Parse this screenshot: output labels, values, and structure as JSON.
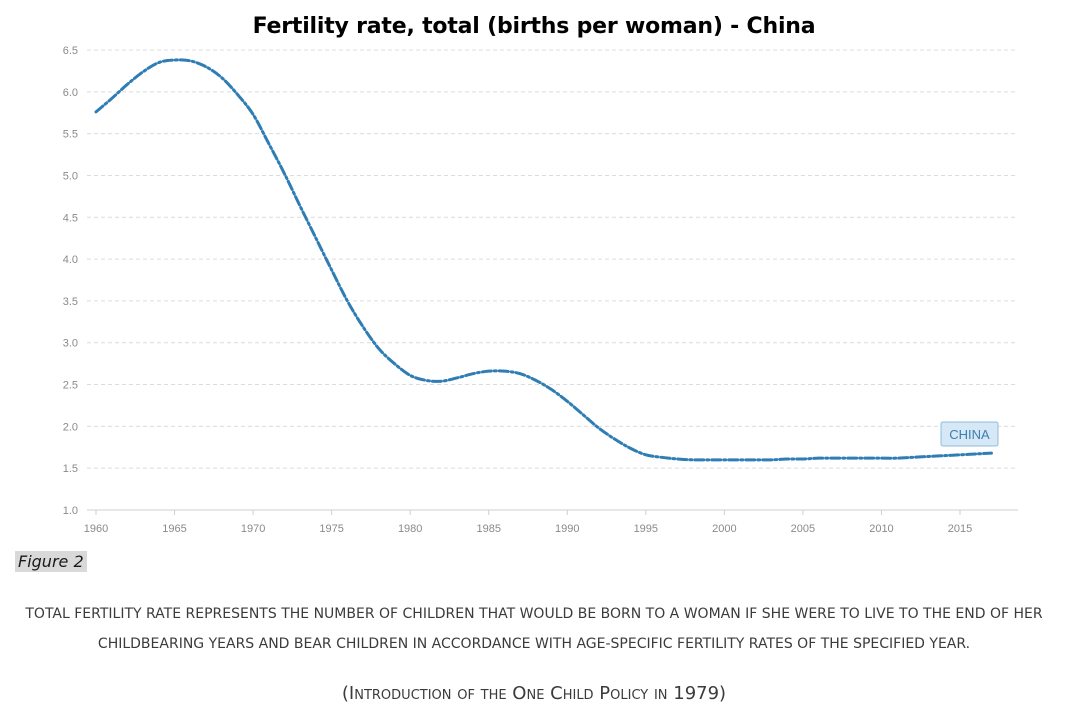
{
  "chart_data": {
    "type": "line",
    "title": "Fertility rate, total (births per woman) - China",
    "xlabel": "",
    "ylabel": "",
    "xlim": [
      1960,
      2018
    ],
    "ylim": [
      1.0,
      6.5
    ],
    "x_ticks": [
      "1960",
      "1965",
      "1970",
      "1975",
      "1980",
      "1985",
      "1990",
      "1995",
      "2000",
      "2005",
      "2010",
      "2015"
    ],
    "y_ticks": [
      "1.0",
      "1.5",
      "2.0",
      "2.5",
      "3.0",
      "3.5",
      "4.0",
      "4.5",
      "5.0",
      "5.5",
      "6.0",
      "6.5"
    ],
    "grid": true,
    "series": [
      {
        "name": "CHINA",
        "color": "#2e7db5",
        "x": [
          1960,
          1961,
          1962,
          1963,
          1964,
          1965,
          1966,
          1967,
          1968,
          1969,
          1970,
          1971,
          1972,
          1973,
          1974,
          1975,
          1976,
          1977,
          1978,
          1979,
          1980,
          1981,
          1982,
          1983,
          1984,
          1985,
          1986,
          1987,
          1988,
          1989,
          1990,
          1991,
          1992,
          1993,
          1994,
          1995,
          1996,
          1997,
          1998,
          1999,
          2000,
          2001,
          2002,
          2003,
          2004,
          2005,
          2006,
          2007,
          2008,
          2009,
          2010,
          2011,
          2012,
          2013,
          2014,
          2015,
          2016,
          2017
        ],
        "y": [
          5.76,
          5.92,
          6.09,
          6.24,
          6.35,
          6.38,
          6.37,
          6.3,
          6.17,
          5.97,
          5.73,
          5.38,
          5.02,
          4.63,
          4.25,
          3.87,
          3.5,
          3.19,
          2.93,
          2.75,
          2.61,
          2.55,
          2.54,
          2.58,
          2.63,
          2.66,
          2.66,
          2.63,
          2.55,
          2.44,
          2.3,
          2.14,
          1.98,
          1.85,
          1.74,
          1.66,
          1.63,
          1.61,
          1.6,
          1.6,
          1.6,
          1.6,
          1.6,
          1.6,
          1.61,
          1.61,
          1.62,
          1.62,
          1.62,
          1.62,
          1.62,
          1.62,
          1.63,
          1.64,
          1.65,
          1.66,
          1.67,
          1.68
        ]
      }
    ],
    "series_label": "CHINA"
  },
  "figure_label": "Figure 2",
  "caption_line1": "TOTAL FERTILITY RATE REPRESENTS THE NUMBER OF CHILDREN THAT WOULD BE BORN TO A WOMAN IF SHE WERE TO LIVE TO THE END OF HER",
  "caption_line2": "CHILDBEARING YEARS AND BEAR CHILDREN IN ACCORDANCE WITH AGE-SPECIFIC FERTILITY RATES OF THE SPECIFIED YEAR.",
  "footnote": "(Introduction of the One Child Policy in 1979)"
}
